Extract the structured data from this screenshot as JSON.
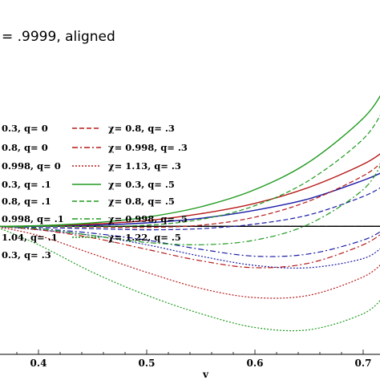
{
  "title": "= .9999, aligned",
  "xlabel": "v",
  "xticks": [
    "0.4",
    "0.5",
    "0.6",
    "0.7"
  ],
  "chart_data": {
    "type": "line",
    "title": "= .9999, aligned",
    "xlabel": "v",
    "ylabel": "",
    "xlim": [
      0.36,
      0.72
    ],
    "ylim": [
      -0.55,
      0.95
    ],
    "grid": false,
    "legend_position": "upper-left, two columns",
    "series": [
      {
        "name": "0.3, q= 0",
        "color": "#000000",
        "dash": "solid",
        "x": [
          0.36,
          0.5,
          0.6,
          0.65,
          0.7,
          0.72
        ],
        "y": [
          0,
          0,
          0,
          0,
          0,
          0
        ]
      },
      {
        "name": "0.8, q= 0",
        "color": "#000000",
        "dash": "dash",
        "x": [
          0.36,
          0.5,
          0.6,
          0.65,
          0.7,
          0.72
        ],
        "y": [
          0,
          0,
          0,
          0,
          0,
          0
        ]
      },
      {
        "name": "0.998, q= 0",
        "color": "#000000",
        "dash": "dashdot",
        "x": [
          0.36,
          0.5,
          0.6,
          0.65,
          0.7,
          0.72
        ],
        "y": [
          0,
          0,
          0,
          0,
          0,
          0
        ]
      },
      {
        "name": "0.3, q= .1",
        "color": "#1c1ca8",
        "dash": "solid",
        "x": [
          0.36,
          0.4,
          0.45,
          0.5,
          0.55,
          0.6,
          0.65,
          0.7,
          0.72
        ],
        "y": [
          0,
          0,
          0.005,
          0.015,
          0.035,
          0.07,
          0.12,
          0.2,
          0.24
        ]
      },
      {
        "name": "0.8, q= .1",
        "color": "#1c1ca8",
        "dash": "dash",
        "x": [
          0.36,
          0.4,
          0.45,
          0.5,
          0.55,
          0.6,
          0.65,
          0.7,
          0.72
        ],
        "y": [
          0,
          -0.005,
          -0.01,
          -0.015,
          -0.01,
          0.01,
          0.05,
          0.13,
          0.18
        ]
      },
      {
        "name": "0.998, q= .1",
        "color": "#1c1ca8",
        "dash": "dashdot",
        "x": [
          0.36,
          0.4,
          0.45,
          0.5,
          0.55,
          0.6,
          0.65,
          0.7,
          0.72
        ],
        "y": [
          0,
          -0.01,
          -0.03,
          -0.06,
          -0.1,
          -0.13,
          -0.12,
          -0.06,
          -0.01
        ]
      },
      {
        "name": "1.04, q= .1",
        "color": "#1c1ca8",
        "dash": "dot",
        "x": [
          0.36,
          0.4,
          0.45,
          0.5,
          0.55,
          0.6,
          0.65,
          0.7,
          0.72
        ],
        "y": [
          0,
          -0.015,
          -0.04,
          -0.08,
          -0.13,
          -0.17,
          -0.18,
          -0.14,
          -0.08
        ]
      },
      {
        "name": "0.3, q= .3",
        "color": "#b71818",
        "dash": "solid",
        "x": [
          0.36,
          0.4,
          0.45,
          0.5,
          0.55,
          0.6,
          0.65,
          0.7,
          0.72
        ],
        "y": [
          0,
          0.002,
          0.01,
          0.025,
          0.055,
          0.1,
          0.17,
          0.27,
          0.33
        ]
      },
      {
        "name": "χ= 0.8, q= .3",
        "color": "#b71818",
        "dash": "dash",
        "x": [
          0.36,
          0.4,
          0.45,
          0.5,
          0.55,
          0.6,
          0.65,
          0.7,
          0.72
        ],
        "y": [
          0,
          0,
          -0.003,
          -0.005,
          0.005,
          0.04,
          0.11,
          0.22,
          0.29
        ]
      },
      {
        "name": "χ= 0.998, q= .3",
        "color": "#b71818",
        "dash": "dashdot",
        "x": [
          0.36,
          0.4,
          0.45,
          0.5,
          0.55,
          0.6,
          0.65,
          0.7,
          0.72
        ],
        "y": [
          0,
          -0.015,
          -0.05,
          -0.1,
          -0.15,
          -0.18,
          -0.16,
          -0.08,
          -0.02
        ]
      },
      {
        "name": "χ= 1.13, q= .3",
        "color": "#b71818",
        "dash": "dot",
        "x": [
          0.36,
          0.4,
          0.45,
          0.5,
          0.55,
          0.6,
          0.65,
          0.7,
          0.72
        ],
        "y": [
          0,
          -0.04,
          -0.12,
          -0.2,
          -0.27,
          -0.31,
          -0.3,
          -0.22,
          -0.15
        ]
      },
      {
        "name": "χ= 0.3, q= .5",
        "color": "#1f9a1f",
        "dash": "solid",
        "x": [
          0.36,
          0.4,
          0.45,
          0.5,
          0.55,
          0.6,
          0.65,
          0.7,
          0.72
        ],
        "y": [
          0,
          0.003,
          0.015,
          0.04,
          0.085,
          0.16,
          0.28,
          0.47,
          0.6
        ]
      },
      {
        "name": "χ= 0.8, q= .5",
        "color": "#1f9a1f",
        "dash": "dash",
        "x": [
          0.36,
          0.4,
          0.45,
          0.5,
          0.55,
          0.6,
          0.65,
          0.7,
          0.72
        ],
        "y": [
          0,
          0,
          0,
          0.005,
          0.03,
          0.09,
          0.2,
          0.38,
          0.52
        ]
      },
      {
        "name": "χ= 0.998, q= .5",
        "color": "#1f9a1f",
        "dash": "dashdot",
        "x": [
          0.36,
          0.4,
          0.45,
          0.5,
          0.55,
          0.6,
          0.65,
          0.7,
          0.72
        ],
        "y": [
          0,
          -0.01,
          -0.04,
          -0.07,
          -0.08,
          -0.06,
          0.01,
          0.16,
          0.3
        ]
      },
      {
        "name": "χ= 1.22, q= .5",
        "color": "#1f9a1f",
        "dash": "dot",
        "x": [
          0.36,
          0.4,
          0.45,
          0.5,
          0.55,
          0.6,
          0.65,
          0.7,
          0.72
        ],
        "y": [
          0,
          -0.08,
          -0.2,
          -0.3,
          -0.38,
          -0.44,
          -0.45,
          -0.38,
          -0.3
        ]
      }
    ]
  }
}
